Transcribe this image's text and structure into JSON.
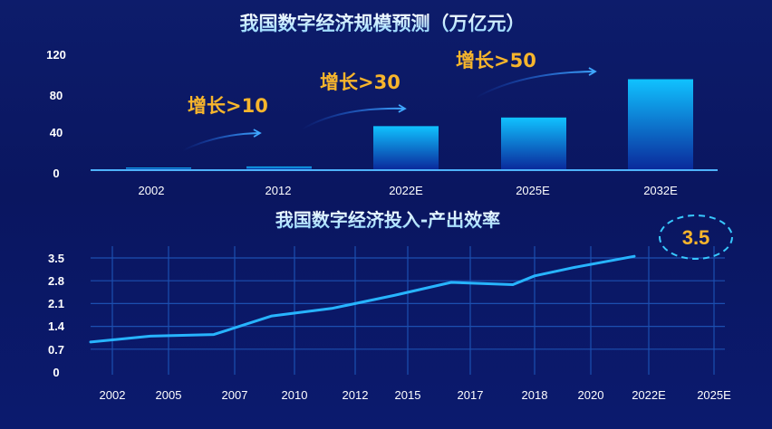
{
  "chart_data": [
    {
      "type": "bar",
      "title": "我国数字经济规模预测（万亿元）",
      "categories": [
        "2002",
        "2012",
        "2022E",
        "2025E",
        "2032E"
      ],
      "values": [
        1.2,
        2.9,
        45,
        54,
        94
      ],
      "yticks": [
        "0",
        "40",
        "80",
        "120"
      ],
      "ylim": [
        0,
        120
      ],
      "annotations": [
        "增长>10",
        "增长>30",
        "增长>50"
      ]
    },
    {
      "type": "line",
      "title": "我国数字经济投入-产出效率",
      "x": [
        "2002",
        "2005",
        "2007",
        "2010",
        "2012",
        "2015",
        "2017",
        "2018",
        "2020",
        "2022E",
        "2025E"
      ],
      "yticks": [
        "0",
        "0.7",
        "1.4",
        "2.1",
        "2.8",
        "3.5"
      ],
      "ylim": [
        0,
        3.5
      ],
      "grid": true,
      "values": [
        0.95,
        1.1,
        1.15,
        1.72,
        1.95,
        2.35,
        2.75,
        2.68,
        2.95,
        3.2,
        3.55
      ],
      "callout": "3.5"
    }
  ],
  "colors": {
    "bar_top": "#10c2ff",
    "bar_bottom": "#0a2a9c",
    "line": "#27b4ff",
    "growth_text": "#f7b52c",
    "axis": "#4fb3ff"
  }
}
